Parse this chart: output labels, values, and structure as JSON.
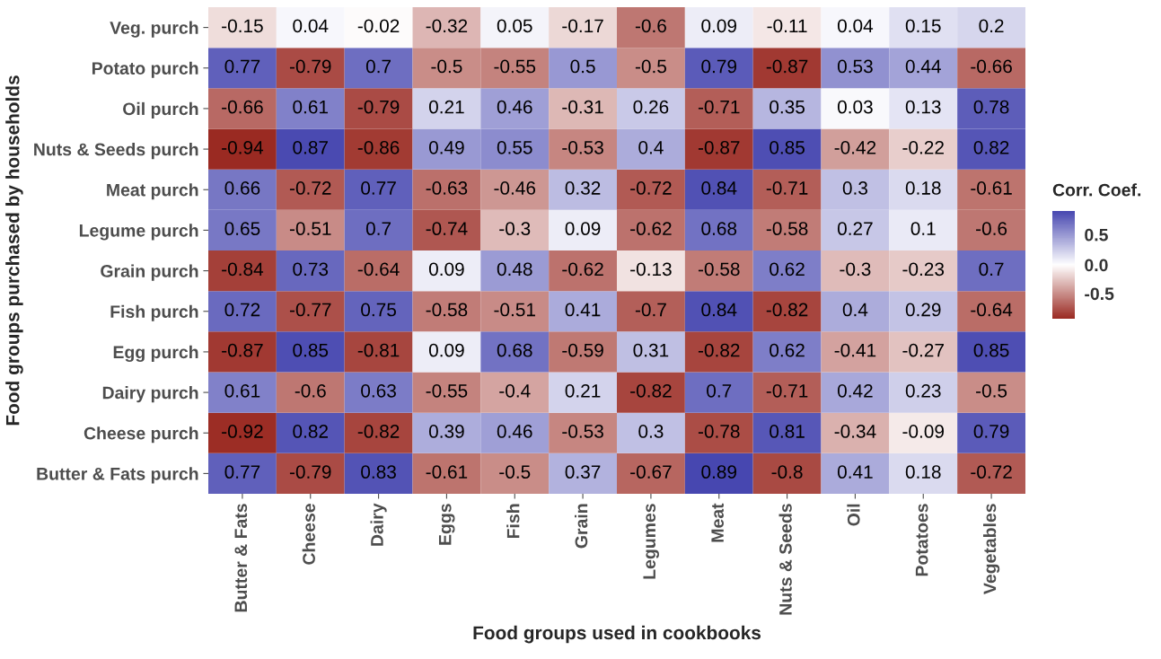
{
  "chart_data": {
    "type": "heatmap",
    "xlabel": "Food groups used in cookbooks",
    "ylabel": "Food groups purchased by households",
    "clabel": "Corr. Coef.",
    "categories": [
      "Butter & Fats",
      "Cheese",
      "Dairy",
      "Eggs",
      "Fish",
      "Grain",
      "Legumes",
      "Meat",
      "Nuts & Seeds",
      "Oil",
      "Potatoes",
      "Vegetables"
    ],
    "y_categories": [
      "Veg. purch",
      "Potato purch",
      "Oil purch",
      "Nuts & Seeds purch",
      "Meat purch",
      "Legume purch",
      "Grain purch",
      "Fish purch",
      "Egg purch",
      "Dairy purch",
      "Cheese purch",
      "Butter & Fats purch"
    ],
    "cells": [
      [
        -0.15,
        0.04,
        -0.02,
        -0.32,
        0.05,
        -0.17,
        -0.6,
        0.09,
        -0.11,
        0.04,
        0.15,
        0.2
      ],
      [
        0.77,
        -0.79,
        0.7,
        -0.5,
        -0.55,
        0.5,
        -0.5,
        0.79,
        -0.87,
        0.53,
        0.44,
        -0.66
      ],
      [
        -0.66,
        0.61,
        -0.79,
        0.21,
        0.46,
        -0.31,
        0.26,
        -0.71,
        0.35,
        0.03,
        0.13,
        0.78
      ],
      [
        -0.94,
        0.87,
        -0.86,
        0.49,
        0.55,
        -0.53,
        0.4,
        -0.87,
        0.85,
        -0.42,
        -0.22,
        0.82
      ],
      [
        0.66,
        -0.72,
        0.77,
        -0.63,
        -0.46,
        0.32,
        -0.72,
        0.84,
        -0.71,
        0.3,
        0.18,
        -0.61
      ],
      [
        0.65,
        -0.51,
        0.7,
        -0.74,
        -0.3,
        0.09,
        -0.62,
        0.68,
        -0.58,
        0.27,
        0.1,
        -0.6
      ],
      [
        -0.84,
        0.73,
        -0.64,
        0.09,
        0.48,
        -0.62,
        -0.13,
        -0.58,
        0.62,
        -0.3,
        -0.23,
        0.7
      ],
      [
        0.72,
        -0.77,
        0.75,
        -0.58,
        -0.51,
        0.41,
        -0.7,
        0.84,
        -0.82,
        0.4,
        0.29,
        -0.64
      ],
      [
        -0.87,
        0.85,
        -0.81,
        0.09,
        0.68,
        -0.59,
        0.31,
        -0.82,
        0.62,
        -0.41,
        -0.27,
        0.85
      ],
      [
        0.61,
        -0.6,
        0.63,
        -0.55,
        -0.4,
        0.21,
        -0.82,
        0.7,
        -0.71,
        0.42,
        0.23,
        -0.5
      ],
      [
        -0.92,
        0.82,
        -0.82,
        0.39,
        0.46,
        -0.53,
        0.3,
        -0.78,
        0.81,
        -0.34,
        -0.09,
        0.79
      ],
      [
        0.77,
        -0.79,
        0.83,
        -0.61,
        -0.5,
        0.37,
        -0.67,
        0.89,
        -0.8,
        0.41,
        0.18,
        -0.72
      ]
    ],
    "clim": [
      -0.94,
      0.89
    ],
    "cticks": [
      {
        "value": 0.5,
        "label": "0.5"
      },
      {
        "value": 0,
        "label": "0.0"
      },
      {
        "value": -0.5,
        "label": "-0.5"
      }
    ],
    "colors": [
      "#9a2a22",
      "#ffffff",
      "#4747b0"
    ],
    "data_labels": true
  }
}
